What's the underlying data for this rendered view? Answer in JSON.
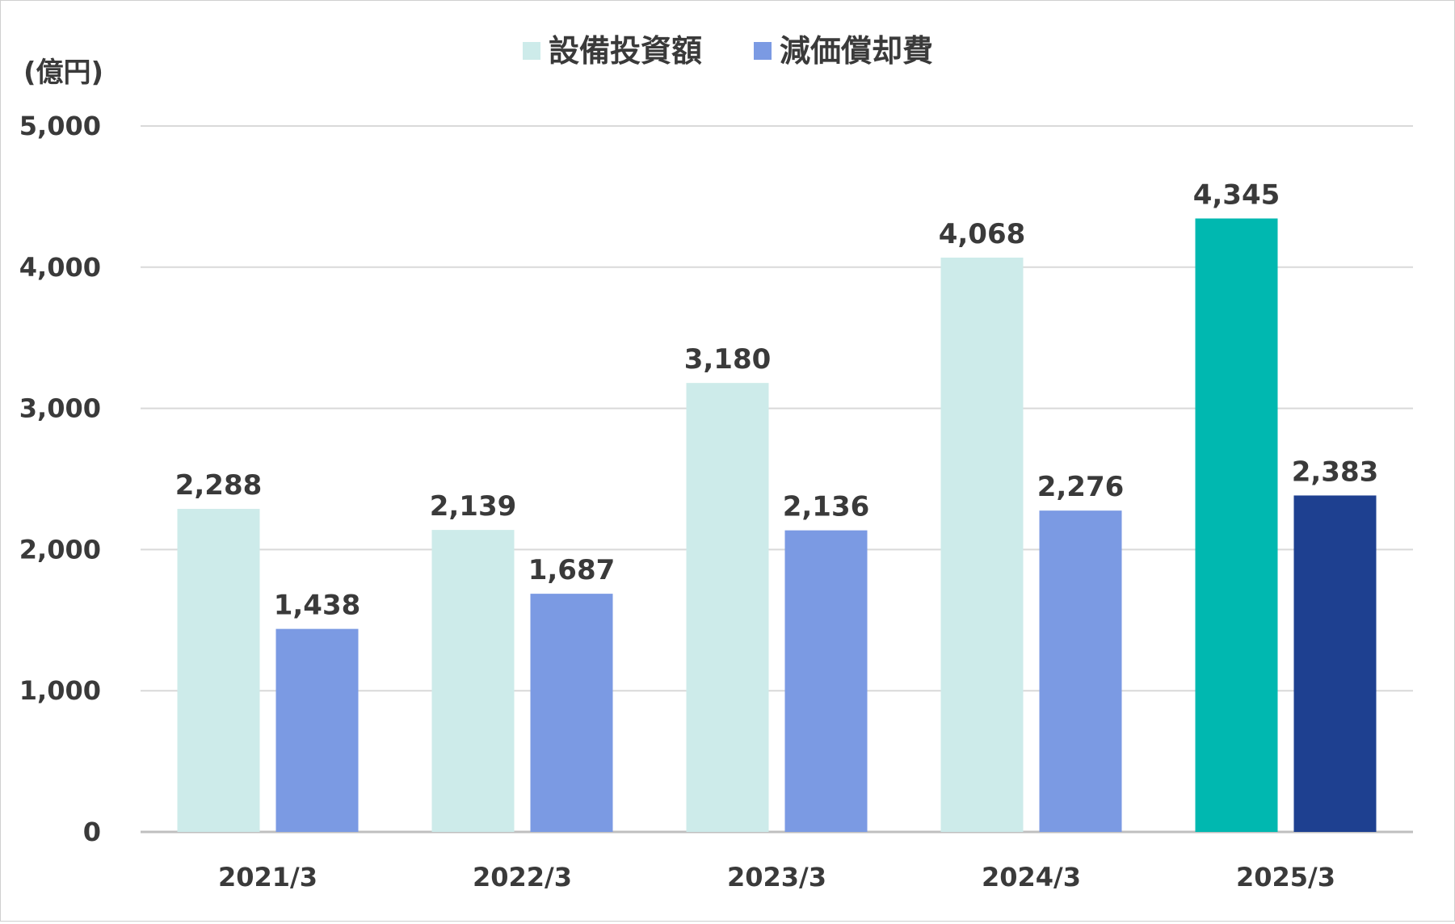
{
  "chart_data": {
    "type": "bar",
    "title": "",
    "ylabel": "(億円)",
    "xlabel": "",
    "ylim": [
      0,
      5000
    ],
    "yticks": [
      0,
      1000,
      2000,
      3000,
      4000,
      5000
    ],
    "ytick_labels": [
      "0",
      "1,000",
      "2,000",
      "3,000",
      "4,000",
      "5,000"
    ],
    "grid": true,
    "legend_position": "top-center",
    "categories": [
      "2021/3",
      "2022/3",
      "2023/3",
      "2024/3",
      "2025/3"
    ],
    "series": [
      {
        "name": "設備投資額",
        "values": [
          2288,
          2139,
          3180,
          4068,
          4345
        ],
        "labels": [
          "2,288",
          "2,139",
          "3,180",
          "4,068",
          "4,345"
        ],
        "color": "#CDEBEA",
        "highlight_color": "#00B8B0"
      },
      {
        "name": "減価償却費",
        "values": [
          1438,
          1687,
          2136,
          2276,
          2383
        ],
        "labels": [
          "1,438",
          "1,687",
          "2,136",
          "2,276",
          "2,383"
        ],
        "color": "#7B9AE3",
        "highlight_color": "#1E4090"
      }
    ],
    "highlight_category": "2025/3",
    "colors": {
      "grid": "#D9D9D9",
      "axis": "#BFBFBF",
      "text": "#3A3A3A"
    }
  }
}
